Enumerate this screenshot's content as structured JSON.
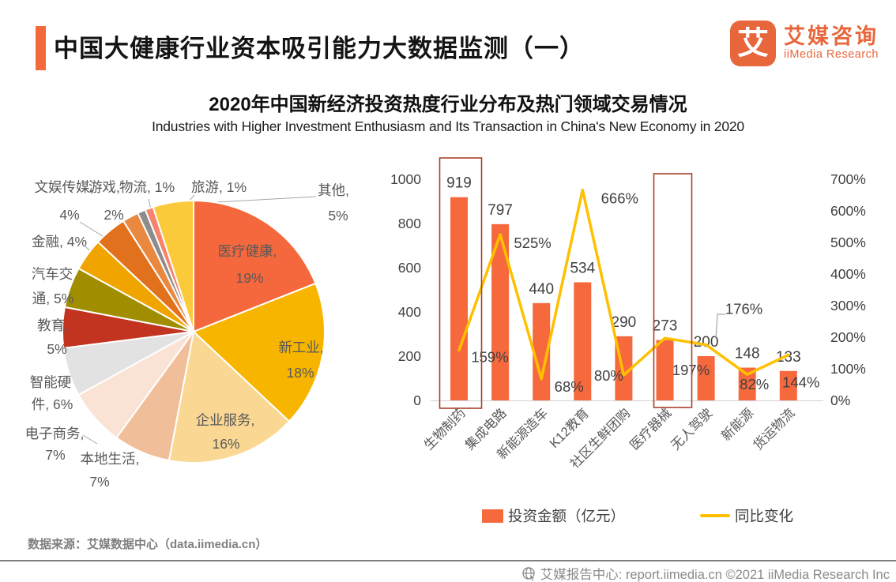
{
  "header": {
    "title": "中国大健康行业资本吸引能力大数据监测（一）",
    "accent_color": "#F4693C",
    "logo": {
      "mark": "艾",
      "brand_cn": "艾媒咨询",
      "brand_en": "iiMedia Research",
      "color": "#E8663C"
    }
  },
  "subtitle": {
    "cn": "2020年中国新经济投资热度行业分布及热门领域交易情况",
    "en": "Industries with Higher Investment Enthusiasm and Its Transaction in China's New Economy in 2020"
  },
  "source_note": "数据来源：艾媒数据中心（data.iimedia.cn）",
  "bottom_bar": {
    "icon": "globe-cursor-icon",
    "text": "艾媒报告中心: report.iimedia.cn  ©2021  iiMedia Research Inc"
  },
  "legend": [
    {
      "type": "bar",
      "label": "投资金额（亿元）",
      "color": "#F5693D"
    },
    {
      "type": "line",
      "label": "同比变化",
      "color": "#FFC000"
    }
  ],
  "chart_data": [
    {
      "type": "pie",
      "title": "2020年中国新经济投资热度行业分布",
      "start_angle_deg": 0,
      "direction": "clockwise",
      "slices": [
        {
          "name": "医疗健康",
          "pct": 19,
          "color": "#F5683D",
          "label_lines": [
            "医疗健康,",
            "19%"
          ],
          "label_inside": true
        },
        {
          "name": "新工业",
          "pct": 18,
          "color": "#F7B500",
          "label_lines": [
            "新工业,",
            "18%"
          ],
          "label_inside": true
        },
        {
          "name": "企业服务",
          "pct": 16,
          "color": "#FAD894",
          "label_lines": [
            "企业服务,",
            "16%"
          ],
          "label_inside": true
        },
        {
          "name": "本地生活",
          "pct": 7,
          "color": "#F1BE9A",
          "label_lines": [
            "本地生活,",
            "7%"
          ],
          "label_inside": false
        },
        {
          "name": "电子商务",
          "pct": 7,
          "color": "#FAE3D5",
          "label_lines": [
            "电子商务,",
            "7%"
          ],
          "label_inside": false
        },
        {
          "name": "智能硬件",
          "pct": 6,
          "color": "#E2E2E2",
          "label_lines": [
            "智能硬",
            "件, 6%"
          ],
          "label_inside": false
        },
        {
          "name": "教育",
          "pct": 5,
          "color": "#C2341F",
          "label_lines": [
            "教育,",
            "5%"
          ],
          "label_inside": false
        },
        {
          "name": "汽车交通",
          "pct": 5,
          "color": "#A08E00",
          "label_lines": [
            "汽车交",
            "通, 5%"
          ],
          "label_inside": false
        },
        {
          "name": "金融",
          "pct": 4,
          "color": "#F0A400",
          "label_lines": [
            "金融, 4%"
          ],
          "label_inside": false
        },
        {
          "name": "文娱传媒",
          "pct": 4,
          "color": "#E2711D",
          "label_lines": [
            "文娱传媒,",
            "4%"
          ],
          "label_inside": false
        },
        {
          "name": "游戏",
          "pct": 2,
          "color": "#E8893F",
          "label_lines": [
            "游戏,",
            "2%"
          ],
          "label_inside": false
        },
        {
          "name": "物流",
          "pct": 1,
          "color": "#8C8C8C",
          "label_lines": [
            "物流, 1%"
          ],
          "label_inside": false
        },
        {
          "name": "旅游",
          "pct": 1,
          "color": "#F6836C",
          "label_lines": [
            "旅游, 1%"
          ],
          "label_inside": false
        },
        {
          "name": "其他",
          "pct": 5,
          "color": "#FBCA3B",
          "label_lines": [
            "其他,",
            "5%"
          ],
          "label_inside": false
        }
      ]
    },
    {
      "type": "bar+line",
      "title": "2020年中国新经济热门领域交易情况",
      "categories": [
        "生物制药",
        "集成电路",
        "新能源造车",
        "K12教育",
        "社区生鲜团购",
        "医疗器械",
        "无人驾驶",
        "新能源",
        "货运物流"
      ],
      "series": [
        {
          "name": "投资金额（亿元）",
          "type": "bar",
          "color": "#F5693D",
          "axis": "left",
          "values": [
            919,
            797,
            440,
            534,
            290,
            273,
            200,
            148,
            133
          ]
        },
        {
          "name": "同比变化",
          "type": "line",
          "color": "#FFC000",
          "axis": "right",
          "values": [
            159,
            525,
            68,
            666,
            80,
            197,
            176,
            82,
            144
          ],
          "unit": "%"
        }
      ],
      "left_axis": {
        "min": 0,
        "max": 1000,
        "step": 200,
        "suffix": ""
      },
      "right_axis": {
        "min": 0,
        "max": 700,
        "step": 100,
        "suffix": "%"
      },
      "highlighted_categories": [
        "生物制药",
        "医疗器械"
      ],
      "highlight_color": "#A6432B",
      "grid": false,
      "legend_position": "bottom"
    }
  ]
}
